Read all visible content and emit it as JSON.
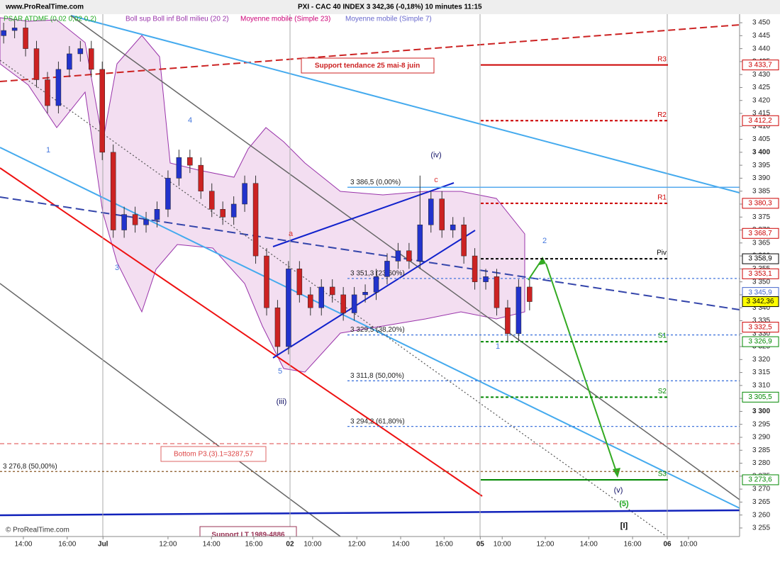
{
  "chart_data": {
    "type": "candlestick",
    "header": "www.ProRealTime.com",
    "title": "PXI - CAC 40 INDEX    3 342,36 (-0,18%)    10 minutes  11:15",
    "footer": "© ProRealTime.com",
    "legend": [
      {
        "name": "PSAR ATDMF (0,02 0,02 0,2)",
        "color": "#22aa22"
      },
      {
        "name": "Boll sup Boll inf Boll milieu (20 2)",
        "color": "#9933aa"
      },
      {
        "name": "Moyenne mobile (Simple 23)",
        "color": "#cc0077"
      },
      {
        "name": "Moyenne mobile (Simple 7)",
        "color": "#6666cc"
      }
    ],
    "up_color": "#2233cc",
    "down_color": "#cc2222",
    "x": [
      1,
      4,
      7,
      10,
      13,
      16,
      19,
      22,
      25,
      28,
      31,
      34,
      37,
      40,
      43,
      46,
      49,
      52,
      55,
      58,
      61,
      64,
      67,
      70,
      73,
      76,
      79,
      82,
      85,
      88,
      91,
      94,
      97,
      100,
      103,
      106,
      109,
      112,
      115,
      118,
      121,
      124,
      127,
      130,
      133,
      136,
      139,
      142,
      145
    ],
    "open": [
      3445,
      3447,
      3448,
      3440,
      3428,
      3418,
      3432,
      3438,
      3440,
      3432,
      3400,
      3370,
      3376,
      3372,
      3374,
      3378,
      3390,
      3398,
      3395,
      3385,
      3378,
      3375,
      3380,
      3388,
      3360,
      3340,
      3325,
      3355,
      3345,
      3340,
      3348,
      3345,
      3338,
      3345,
      3346,
      3352,
      3358,
      3362,
      3358,
      3372,
      3382,
      3370,
      3372,
      3360,
      3350,
      3352,
      3340,
      3330,
      3348
    ],
    "high": [
      3450,
      3451,
      3451,
      3443,
      3431,
      3435,
      3441,
      3443,
      3443,
      3435,
      3403,
      3379,
      3379,
      3377,
      3381,
      3393,
      3401,
      3401,
      3398,
      3388,
      3381,
      3383,
      3391,
      3391,
      3363,
      3343,
      3358,
      3358,
      3348,
      3351,
      3351,
      3348,
      3348,
      3349,
      3355,
      3361,
      3365,
      3365,
      3391,
      3385,
      3385,
      3375,
      3375,
      3363,
      3355,
      3355,
      3343,
      3351,
      3351
    ],
    "low": [
      3442,
      3444,
      3437,
      3425,
      3415,
      3415,
      3429,
      3435,
      3429,
      3397,
      3367,
      3367,
      3369,
      3369,
      3371,
      3375,
      3387,
      3392,
      3382,
      3375,
      3372,
      3372,
      3377,
      3357,
      3337,
      3322,
      3322,
      3342,
      3337,
      3337,
      3342,
      3335,
      3335,
      3342,
      3343,
      3349,
      3355,
      3355,
      3355,
      3369,
      3367,
      3367,
      3357,
      3347,
      3347,
      3337,
      3327,
      3327,
      3339
    ],
    "close": [
      3447,
      3448,
      3440,
      3428,
      3418,
      3432,
      3438,
      3440,
      3432,
      3400,
      3370,
      3376,
      3372,
      3374,
      3378,
      3390,
      3398,
      3395,
      3385,
      3378,
      3375,
      3380,
      3388,
      3360,
      3340,
      3325,
      3355,
      3345,
      3340,
      3348,
      3345,
      3338,
      3345,
      3346,
      3352,
      3358,
      3362,
      3358,
      3372,
      3382,
      3370,
      3372,
      3360,
      3350,
      3352,
      3340,
      3330,
      3348,
      3342.36
    ],
    "xlim": [
      0,
      202.5
    ],
    "xticks": [
      {
        "value": 6.4,
        "label": "14:00"
      },
      {
        "value": 18.4,
        "label": "16:00"
      },
      {
        "value": 28.2,
        "label": "Jul",
        "bold": true
      },
      {
        "value": 46,
        "label": "12:00"
      },
      {
        "value": 57.9,
        "label": "14:00"
      },
      {
        "value": 69.5,
        "label": "16:00"
      },
      {
        "value": 79.4,
        "label": "02",
        "bold": true
      },
      {
        "value": 85.6,
        "label": "10:00"
      },
      {
        "value": 97.7,
        "label": "12:00"
      },
      {
        "value": 109.7,
        "label": "14:00"
      },
      {
        "value": 121.6,
        "label": "16:00"
      },
      {
        "value": 131.5,
        "label": "05",
        "bold": true
      },
      {
        "value": 137.5,
        "label": "10:00"
      },
      {
        "value": 149.3,
        "label": "12:00"
      },
      {
        "value": 161.2,
        "label": "14:00"
      },
      {
        "value": 173.2,
        "label": "16:00"
      },
      {
        "value": 182.7,
        "label": "06",
        "bold": true
      },
      {
        "value": 188.5,
        "label": "10:00"
      }
    ],
    "ylim": [
      3251.7,
      3453.3
    ],
    "yticks": [
      {
        "value": 3450,
        "label": "3 450"
      },
      {
        "value": 3445,
        "label": "3 445"
      },
      {
        "value": 3440,
        "label": "3 440"
      },
      {
        "value": 3435,
        "label": "3 435"
      },
      {
        "value": 3430,
        "label": "3 430"
      },
      {
        "value": 3425,
        "label": "3 425"
      },
      {
        "value": 3420,
        "label": "3 420"
      },
      {
        "value": 3415,
        "label": "3 415"
      },
      {
        "value": 3410,
        "label": "3 410"
      },
      {
        "value": 3405,
        "label": "3 405"
      },
      {
        "value": 3400,
        "label": "3 400",
        "bold": true
      },
      {
        "value": 3395,
        "label": "3 395"
      },
      {
        "value": 3390,
        "label": "3 390"
      },
      {
        "value": 3385,
        "label": "3 385"
      },
      {
        "value": 3380,
        "label": "3 380"
      },
      {
        "value": 3375,
        "label": "3 375"
      },
      {
        "value": 3370,
        "label": "3 370"
      },
      {
        "value": 3365,
        "label": "3 365"
      },
      {
        "value": 3360,
        "label": "3 360"
      },
      {
        "value": 3355,
        "label": "3 355"
      },
      {
        "value": 3350,
        "label": "3 350"
      },
      {
        "value": 3345,
        "label": "3 345"
      },
      {
        "value": 3340,
        "label": "3 340"
      },
      {
        "value": 3335,
        "label": "3 335"
      },
      {
        "value": 3330,
        "label": "3 330"
      },
      {
        "value": 3325,
        "label": "3 325"
      },
      {
        "value": 3320,
        "label": "3 320"
      },
      {
        "value": 3315,
        "label": "3 315"
      },
      {
        "value": 3310,
        "label": "3 310"
      },
      {
        "value": 3305,
        "label": "3 305"
      },
      {
        "value": 3300,
        "label": "3 300",
        "bold": true
      },
      {
        "value": 3295,
        "label": "3 295"
      },
      {
        "value": 3290,
        "label": "3 290"
      },
      {
        "value": 3285,
        "label": "3 285"
      },
      {
        "value": 3280,
        "label": "3 280"
      },
      {
        "value": 3275,
        "label": "3 275"
      },
      {
        "value": 3270,
        "label": "3 270"
      },
      {
        "value": 3265,
        "label": "3 265"
      },
      {
        "value": 3260,
        "label": "3 260"
      },
      {
        "value": 3255,
        "label": "3 255"
      }
    ],
    "levels": [
      {
        "name": "R3",
        "value": 3433.7,
        "label": "3 433,7",
        "color": "#cc0000",
        "dashed": false
      },
      {
        "name": "R2",
        "value": 3412.2,
        "label": "3 412,2",
        "color": "#cc0000",
        "dashed": true
      },
      {
        "name": "R1",
        "value": 3380.3,
        "label": "3 380,3",
        "color": "#cc0000",
        "dashed": true
      },
      {
        "name": "Piv",
        "value": 3358.9,
        "label": "3 358,9",
        "color": "#000000",
        "dashed": true
      },
      {
        "name": "S1",
        "value": 3326.9,
        "label": "3 326,9",
        "color": "#008800",
        "dashed": true
      },
      {
        "name": "S2",
        "value": 3305.5,
        "label": "3 305,5",
        "color": "#008800",
        "dashed": true
      },
      {
        "name": "S3",
        "value": 3273.6,
        "label": "3 273,6",
        "color": "#008800",
        "dashed": false
      }
    ],
    "price_boxes": [
      {
        "value": 3368.7,
        "label": "3 368,7",
        "color": "#cc0000"
      },
      {
        "value": 3353.1,
        "label": "3 353,1",
        "color": "#cc0000"
      },
      {
        "value": 3345.9,
        "label": "3 345,9",
        "color": "#4466cc"
      },
      {
        "value": 3332.5,
        "label": "3 332,5",
        "color": "#cc0000"
      },
      {
        "value": 3342.36,
        "label": "3 342,36",
        "color": "#000000",
        "background": "#ffff00"
      }
    ],
    "fib_levels": [
      {
        "value": 3386.5,
        "label": "3 386,5 (0,00%)",
        "color": "#55aaee",
        "dashed": false
      },
      {
        "value": 3351.3,
        "label": "3 351,3 (23,60%)",
        "color": "#4477dd",
        "dashed": true
      },
      {
        "value": 3329.5,
        "label": "3 329,5 (38,20%)",
        "color": "#4477dd",
        "dashed": true
      },
      {
        "value": 3311.8,
        "label": "3 311,8 (50,00%)",
        "color": "#4477dd",
        "dashed": true
      },
      {
        "value": 3294.2,
        "label": "3 294,2 (61,80%)",
        "color": "#4477dd",
        "dashed": true
      },
      {
        "value": 3276.8,
        "label": "3 276,8 (50,00%)",
        "color": "#885522",
        "dashed": true,
        "full_width": true
      }
    ],
    "annotations": [
      "Support tendance 25 mai-8 juin",
      "Bottom P3.(3).1=3287,57",
      "Support LT 1989-4886"
    ],
    "wave_labels": [
      "1",
      "3",
      "4",
      "5",
      "(iii)",
      "(iv)",
      "a",
      "c",
      "2",
      "1",
      "(v)",
      "(5)",
      "[I]"
    ]
  }
}
